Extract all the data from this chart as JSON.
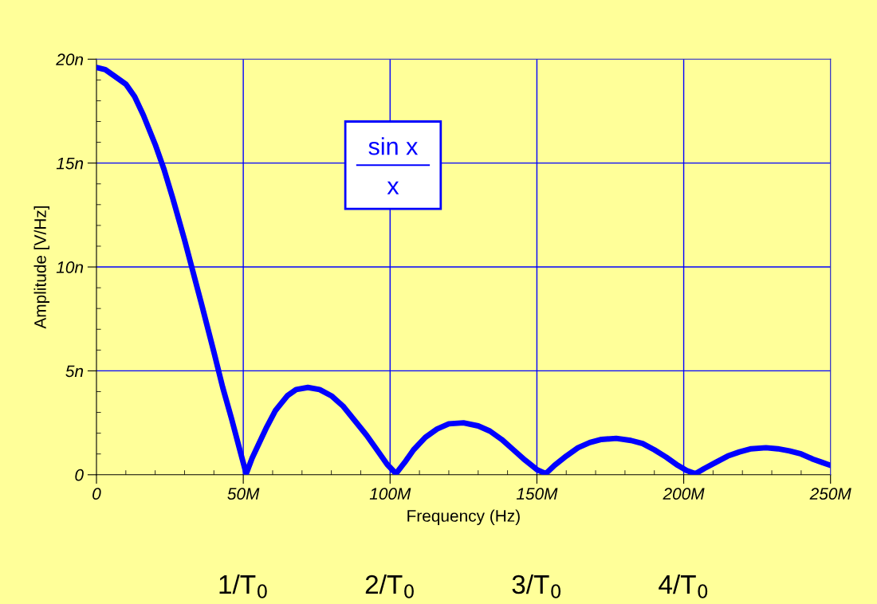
{
  "chart_data": {
    "type": "line",
    "xlabel": "Frequency (Hz)",
    "ylabel": "Amplitude [V/Hz]",
    "x": [
      0,
      3,
      6,
      10,
      13,
      16,
      20,
      23,
      26,
      30,
      33,
      36,
      40,
      43,
      46,
      49,
      51,
      53,
      55,
      58,
      61,
      65,
      68,
      72,
      76,
      80,
      84,
      88,
      92,
      96,
      99,
      102,
      105,
      108,
      112,
      116,
      120,
      125,
      130,
      134,
      138,
      142,
      146,
      150,
      153,
      156,
      160,
      164,
      168,
      172,
      177,
      182,
      186,
      190,
      194,
      198,
      201,
      204,
      207,
      211,
      215,
      219,
      223,
      228,
      232,
      236,
      240,
      244,
      247,
      250
    ],
    "series": [
      {
        "color": "#0000ff",
        "values": [
          19.6,
          19.5,
          19.2,
          18.8,
          18.2,
          17.3,
          15.9,
          14.7,
          13.3,
          11.3,
          9.7,
          8.1,
          5.9,
          4.2,
          2.7,
          1.1,
          0.05,
          0.8,
          1.4,
          2.3,
          3.1,
          3.8,
          4.1,
          4.2,
          4.1,
          3.8,
          3.3,
          2.6,
          1.9,
          1.1,
          0.5,
          0.05,
          0.6,
          1.2,
          1.8,
          2.2,
          2.45,
          2.5,
          2.35,
          2.1,
          1.7,
          1.2,
          0.7,
          0.25,
          0.05,
          0.45,
          0.9,
          1.3,
          1.55,
          1.7,
          1.75,
          1.65,
          1.5,
          1.2,
          0.85,
          0.45,
          0.2,
          0.05,
          0.3,
          0.6,
          0.9,
          1.1,
          1.25,
          1.3,
          1.25,
          1.15,
          1.0,
          0.75,
          0.6,
          0.45
        ]
      }
    ],
    "xlim": [
      0,
      250
    ],
    "ylim": [
      0,
      20
    ],
    "xticks": [
      0,
      {
        "value": 50,
        "label": "50M"
      },
      {
        "value": 100,
        "label": "100M"
      },
      {
        "value": 150,
        "label": "150M"
      },
      {
        "value": 200,
        "label": "200M"
      },
      {
        "value": 250,
        "label": "250M"
      }
    ],
    "yticks": [
      0,
      {
        "value": 5,
        "label": "5n"
      },
      {
        "value": 10,
        "label": "10n"
      },
      {
        "value": 15,
        "label": "15n"
      },
      {
        "value": 20,
        "label": "20n"
      }
    ],
    "grid": true,
    "legend": false,
    "marker": "none",
    "line_style": "solid",
    "annotations": [
      "sin x",
      "x",
      "1/T$_{0}$",
      "2/T$_{0}$",
      "3/T$_{0}$",
      "4/T$_{0}$"
    ]
  }
}
